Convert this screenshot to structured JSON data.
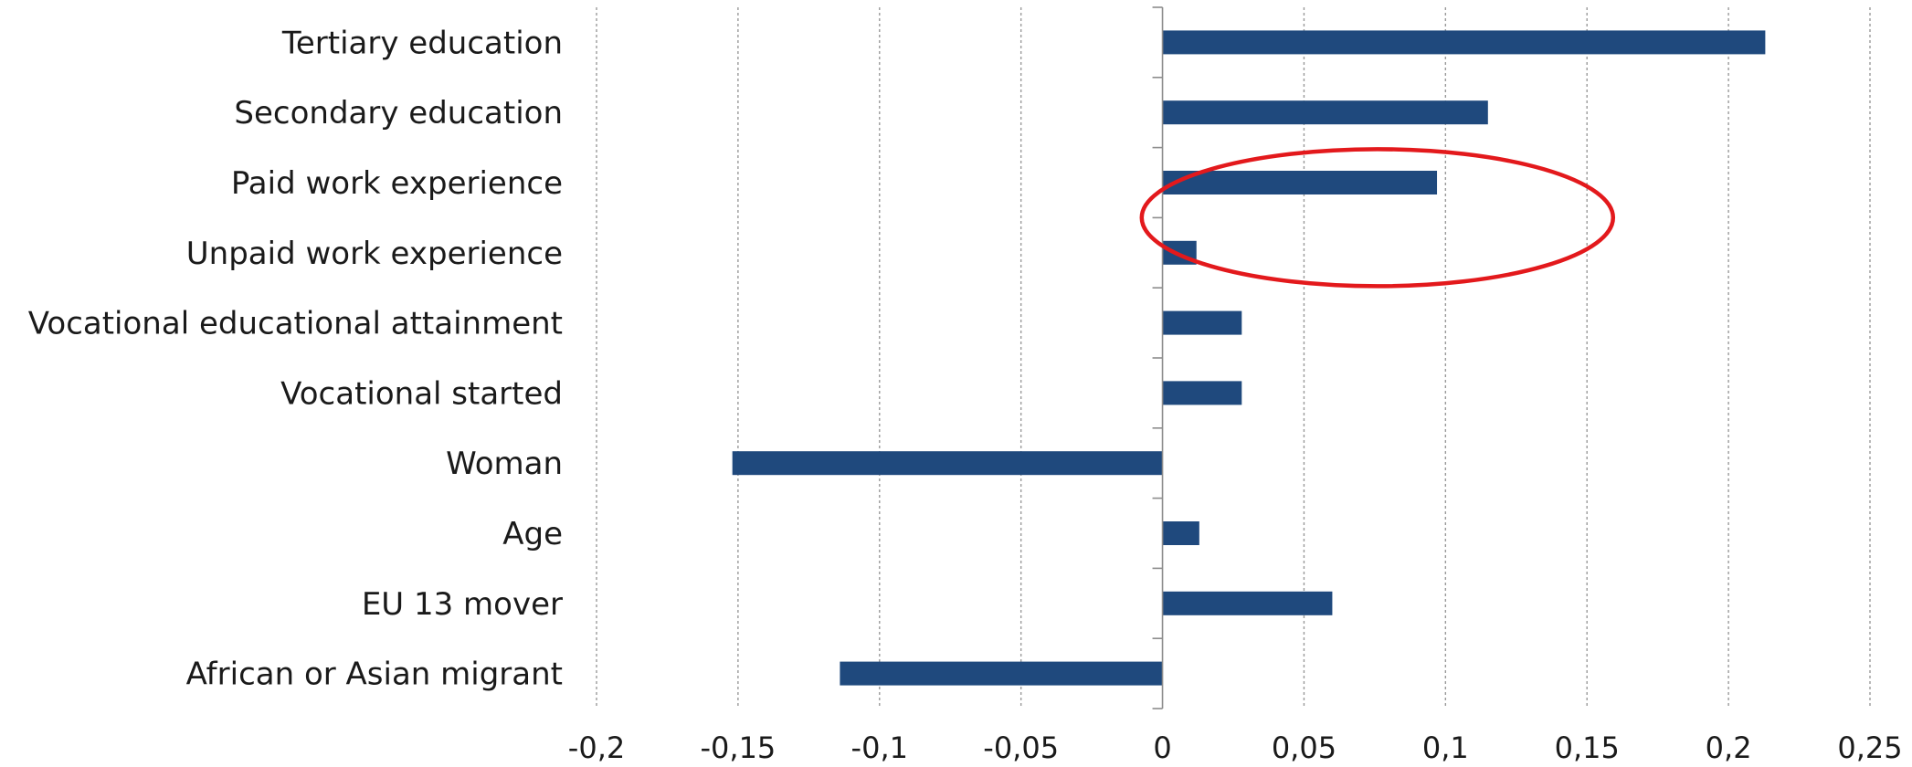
{
  "chart_data": {
    "type": "bar",
    "orientation": "horizontal",
    "categories": [
      "Tertiary education",
      "Secondary education",
      "Paid work experience",
      "Unpaid work experience ",
      "Vocational educational attainment",
      "Vocational started ",
      "Woman",
      "Age",
      "EU 13 mover",
      "African or Asian migrant"
    ],
    "values": [
      0.213,
      0.115,
      0.097,
      0.012,
      0.028,
      0.028,
      -0.152,
      0.013,
      0.06,
      -0.114
    ],
    "xlim": [
      -0.2,
      0.25
    ],
    "xticks": [
      -0.2,
      -0.15,
      -0.1,
      -0.05,
      0,
      0.05,
      0.1,
      0.15,
      0.2,
      0.25
    ],
    "xtick_labels": [
      "-0,2",
      "-0,15",
      "-0,1",
      "-0,05",
      "0",
      "0,05",
      "0,1",
      "0,15",
      "0,2",
      "0,25"
    ],
    "bar_color": "#1f497d",
    "grid": "vertical-dotted",
    "legend": "none",
    "annotation": {
      "type": "ellipse",
      "color": "#e3191c",
      "highlights": [
        "Paid work experience",
        "Unpaid work experience "
      ]
    }
  }
}
